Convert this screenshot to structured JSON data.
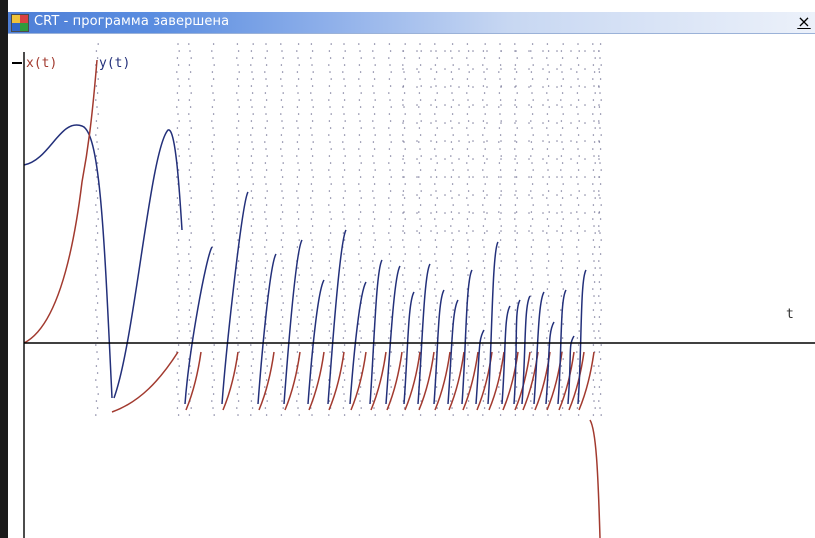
{
  "window": {
    "title": "CRT - программа завершена",
    "close_label": "×"
  },
  "plot": {
    "x_label": "x(t)",
    "y_label": "y(t)",
    "t_label": "t",
    "colors": {
      "x_series": "#a23a2f",
      "y_series": "#23307a",
      "axes": "#000000",
      "trace": "#7a7a9a"
    }
  }
}
